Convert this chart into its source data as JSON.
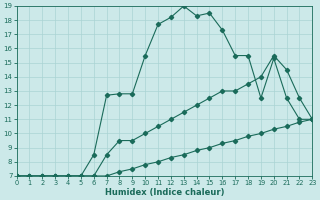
{
  "xlabel": "Humidex (Indice chaleur)",
  "bg_color": "#cce9e9",
  "line_color": "#1a6b5a",
  "grid_color": "#aad4d4",
  "xlim": [
    0,
    23
  ],
  "ylim": [
    7,
    19
  ],
  "xticks": [
    0,
    1,
    2,
    3,
    4,
    5,
    6,
    7,
    8,
    9,
    10,
    11,
    12,
    13,
    14,
    15,
    16,
    17,
    18,
    19,
    20,
    21,
    22,
    23
  ],
  "yticks": [
    7,
    8,
    9,
    10,
    11,
    12,
    13,
    14,
    15,
    16,
    17,
    18,
    19
  ],
  "line1_x": [
    0,
    1,
    2,
    3,
    4,
    5,
    6,
    7,
    8,
    9,
    10,
    11,
    12,
    13,
    14,
    15,
    16,
    17,
    18,
    19,
    20,
    21,
    22,
    23
  ],
  "line1_y": [
    7,
    7,
    7,
    7,
    7,
    7,
    7,
    7,
    7.3,
    7.5,
    7.8,
    8.0,
    8.3,
    8.5,
    8.8,
    9.0,
    9.3,
    9.5,
    9.8,
    10.0,
    10.3,
    10.5,
    10.8,
    11.0
  ],
  "line2_x": [
    0,
    1,
    2,
    3,
    4,
    5,
    6,
    7,
    8,
    9,
    10,
    11,
    12,
    13,
    14,
    15,
    16,
    17,
    18,
    19,
    20,
    21,
    22,
    23
  ],
  "line2_y": [
    7,
    7,
    7,
    7,
    7,
    7,
    7,
    8.5,
    9.5,
    9.5,
    10.0,
    10.5,
    11.0,
    11.5,
    12.0,
    12.5,
    13.0,
    13.0,
    13.5,
    14.0,
    15.5,
    14.5,
    12.5,
    11.0
  ],
  "line3_x": [
    0,
    1,
    2,
    3,
    4,
    5,
    6,
    7,
    8,
    9,
    10,
    11,
    12,
    13,
    14,
    15,
    16,
    17,
    18,
    19,
    20,
    21,
    22,
    23
  ],
  "line3_y": [
    7,
    7,
    7,
    7,
    7,
    7,
    8.5,
    12.7,
    12.8,
    12.8,
    15.5,
    17.7,
    18.2,
    19.0,
    18.3,
    18.5,
    17.3,
    15.5,
    15.5,
    12.5,
    15.3,
    12.5,
    11.0,
    11.0
  ]
}
